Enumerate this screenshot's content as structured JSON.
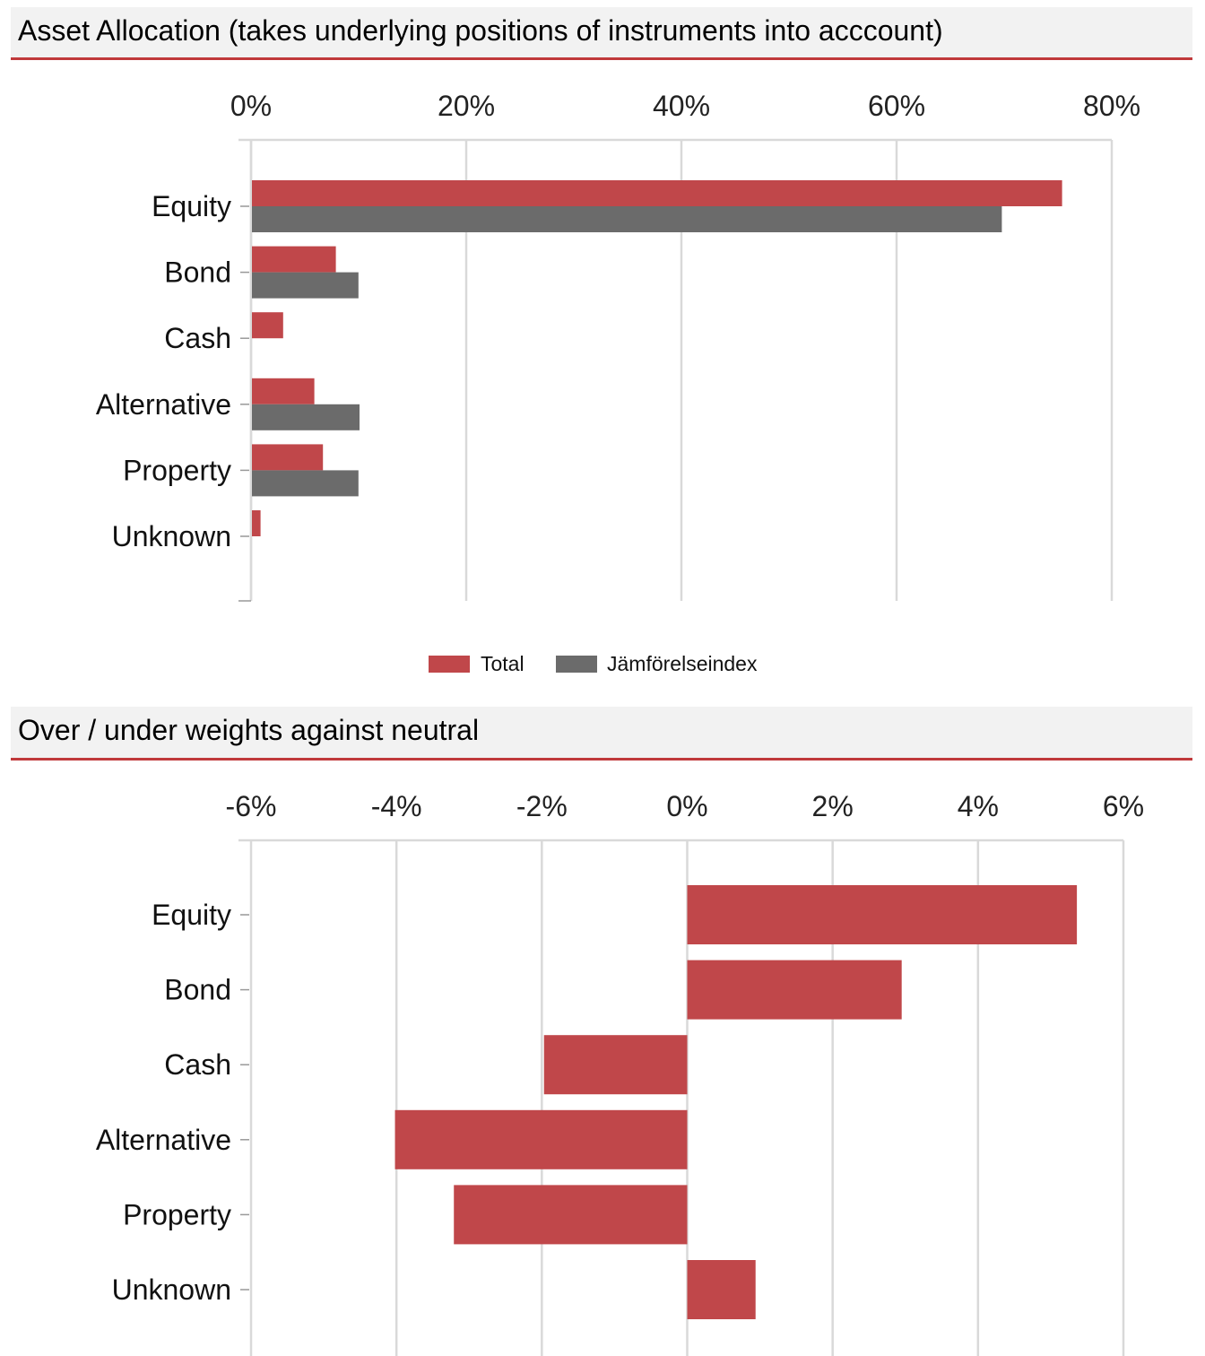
{
  "sections": {
    "asset_allocation_title": "Asset Allocation (takes underlying positions of instruments into acccount)",
    "weights_title": "Over / under weights against neutral"
  },
  "colors": {
    "total": "#c0474a",
    "benchmark": "#6b6b6b",
    "grid": "#d9d9d9",
    "header_rule": "#c0393b"
  },
  "chart_data": [
    {
      "type": "bar",
      "orientation": "horizontal",
      "categories": [
        "Equity",
        "Bond",
        "Cash",
        "Alternative",
        "Property",
        "Unknown"
      ],
      "series": [
        {
          "name": "Total",
          "values": [
            75.3,
            7.8,
            2.9,
            5.8,
            6.6,
            0.8
          ]
        },
        {
          "name": "Jämförelseindex",
          "values": [
            69.7,
            9.9,
            0,
            10.0,
            9.9,
            0
          ]
        }
      ],
      "xlim": [
        0,
        80
      ],
      "xticks": [
        0,
        20,
        40,
        60,
        80
      ],
      "tick_labels": [
        "0%",
        "20%",
        "40%",
        "60%",
        "80%"
      ],
      "grid": true,
      "legend": "bottom"
    },
    {
      "type": "bar",
      "orientation": "horizontal",
      "categories": [
        "Equity",
        "Bond",
        "Cash",
        "Alternative",
        "Property",
        "Unknown"
      ],
      "series": [
        {
          "values": [
            5.36,
            2.95,
            -1.97,
            -4.02,
            -3.21,
            0.94
          ]
        }
      ],
      "xlim": [
        -6,
        6
      ],
      "xticks": [
        -6,
        -4,
        -2,
        0,
        2,
        4,
        6
      ],
      "tick_labels": [
        "-6%",
        "-4%",
        "-2%",
        "0%",
        "2%",
        "4%",
        "6%"
      ],
      "grid": true,
      "legend": "none"
    }
  ]
}
